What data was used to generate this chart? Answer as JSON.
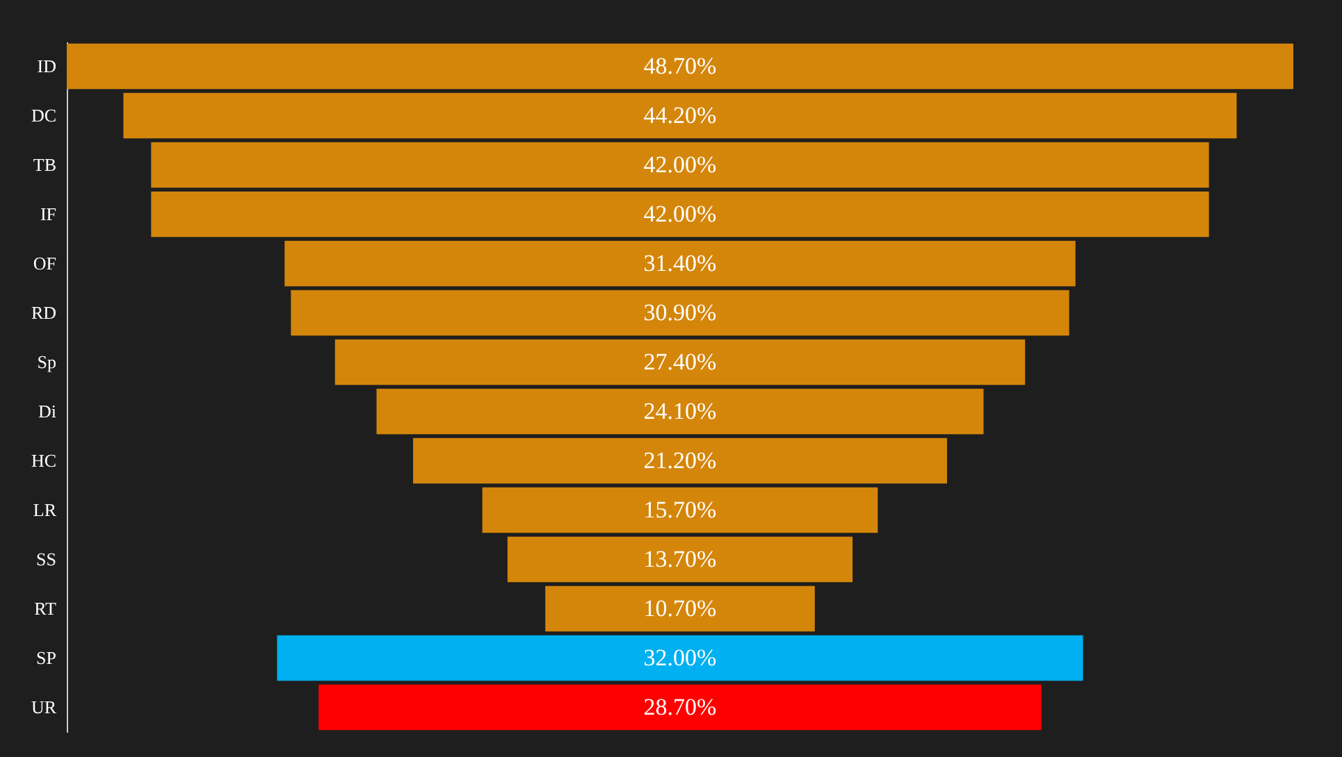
{
  "chart_data": {
    "type": "other",
    "categories": [
      "ID",
      "DC",
      "TB",
      "IF",
      "OF",
      "RD",
      "Sp",
      "Di",
      "HC",
      "LR",
      "SS",
      "RT",
      "SP",
      "UR"
    ],
    "values": [
      48.7,
      44.2,
      42.0,
      42.0,
      31.4,
      30.9,
      27.4,
      24.1,
      21.2,
      15.7,
      13.7,
      10.7,
      32.0,
      28.7
    ],
    "value_labels": [
      "48.70%",
      "44.20%",
      "42.00%",
      "42.00%",
      "31.40%",
      "30.90%",
      "27.40%",
      "24.10%",
      "21.20%",
      "15.70%",
      "13.70%",
      "10.70%",
      "32.00%",
      "28.70%"
    ],
    "colors": [
      "#d4860b",
      "#d4860b",
      "#d4860b",
      "#d4860b",
      "#d4860b",
      "#d4860b",
      "#d4860b",
      "#d4860b",
      "#d4860b",
      "#d4860b",
      "#d4860b",
      "#d4860b",
      "#00b0f0",
      "#ff0000"
    ]
  }
}
